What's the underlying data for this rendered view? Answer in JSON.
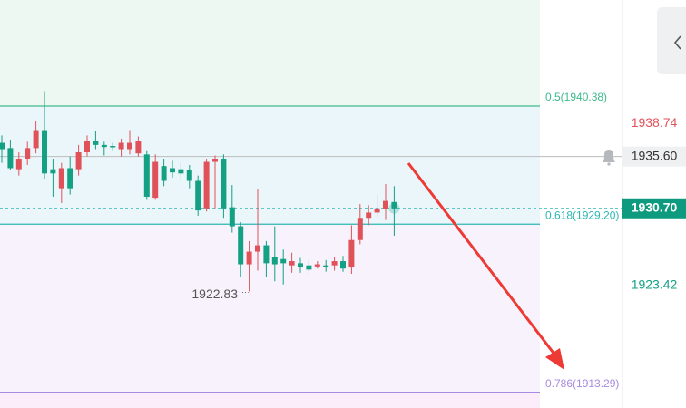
{
  "chart_data": {
    "type": "candlestick",
    "ylim": [
      1911.8,
      1950.42
    ],
    "up_color": "#e0525a",
    "down_color": "#14a083",
    "candles": {
      "open": [
        1936.9,
        1936.4,
        1934.4,
        1935.4,
        1936.4,
        1938.1,
        1934.4,
        1932.6,
        1934.5,
        1934.4,
        1936.0,
        1937.1,
        1936.7,
        1936.6,
        1936.3,
        1936.3,
        1935.9,
        1935.8,
        1931.7,
        1934.7,
        1934.5,
        1934.4,
        1934.3,
        1933.3,
        1930.7,
        1935.1,
        1935.4,
        1930.8,
        1929.0,
        1925.4,
        1926.6,
        1927.2,
        1926.1,
        1925.9,
        1925.3,
        1925.5,
        1925.3,
        1925.2,
        1925.3,
        1925.3,
        1925.7,
        1925.1,
        1927.7,
        1929.8,
        1930.3,
        1930.6,
        1931.3
      ],
      "high": [
        1937.6,
        1937.2,
        1936.0,
        1937.0,
        1939.0,
        1941.8,
        1935.4,
        1935.0,
        1935.6,
        1936.7,
        1937.6,
        1938.0,
        1937.0,
        1936.9,
        1937.3,
        1938.1,
        1937.5,
        1936.2,
        1935.8,
        1935.4,
        1935.2,
        1935.0,
        1934.8,
        1933.8,
        1935.4,
        1935.7,
        1935.8,
        1932.9,
        1929.4,
        1927.6,
        1932.5,
        1927.6,
        1929.0,
        1926.8,
        1926.5,
        1926.0,
        1925.8,
        1925.7,
        1925.8,
        1926.1,
        1926.2,
        1929.1,
        1931.1,
        1931.0,
        1932.0,
        1933.0,
        1932.8
      ],
      "low": [
        1935.0,
        1934.3,
        1933.8,
        1934.8,
        1935.9,
        1933.5,
        1931.8,
        1931.2,
        1932.0,
        1933.8,
        1935.6,
        1936.3,
        1935.7,
        1936.2,
        1935.6,
        1935.8,
        1935.6,
        1931.5,
        1931.5,
        1932.8,
        1933.6,
        1933.5,
        1932.6,
        1930.0,
        1930.4,
        1930.7,
        1929.8,
        1928.4,
        1924.2,
        1922.83,
        1924.8,
        1924.2,
        1923.8,
        1923.5,
        1924.6,
        1924.6,
        1924.6,
        1925.0,
        1924.7,
        1924.8,
        1924.7,
        1924.5,
        1927.3,
        1929.1,
        1929.8,
        1929.6,
        1928.1
      ],
      "close": [
        1936.3,
        1934.5,
        1935.4,
        1936.4,
        1938.1,
        1934.0,
        1934.0,
        1934.5,
        1932.6,
        1936.0,
        1937.1,
        1936.7,
        1936.5,
        1936.5,
        1936.9,
        1936.9,
        1937.1,
        1931.8,
        1935.1,
        1933.3,
        1934.1,
        1934.0,
        1933.3,
        1930.5,
        1935.1,
        1935.4,
        1930.7,
        1929.0,
        1925.4,
        1926.6,
        1927.2,
        1925.5,
        1925.4,
        1925.5,
        1925.7,
        1925.1,
        1924.9,
        1925.4,
        1925.1,
        1925.7,
        1925.0,
        1927.7,
        1929.8,
        1930.3,
        1930.7,
        1931.4,
        1930.7
      ]
    },
    "fib_levels": [
      {
        "value": 1940.38,
        "label": "0.5(1940.38)",
        "color": "#3fba8c",
        "fill": "#eef8f2"
      },
      {
        "value": 1929.2,
        "label": "0.618(1929.20)",
        "color": "#2db7b3",
        "fill": "#ebf6fb"
      },
      {
        "value": 1913.29,
        "label": "0.786(1913.29)",
        "color": "#a88ae0",
        "fill": "#f7f2fb"
      }
    ],
    "below_fill": "#fbeefa",
    "price_labels": [
      {
        "value": 1938.74,
        "label": "1938.74",
        "color": "#e0525a"
      },
      {
        "value": 1923.42,
        "label": "1923.42",
        "color": "#14a083"
      }
    ],
    "crosshair": {
      "value": 1935.6,
      "label": "1935.60"
    },
    "current_price": {
      "value": 1930.7,
      "label": "1930.70"
    },
    "low_annotation": 1922.83
  }
}
